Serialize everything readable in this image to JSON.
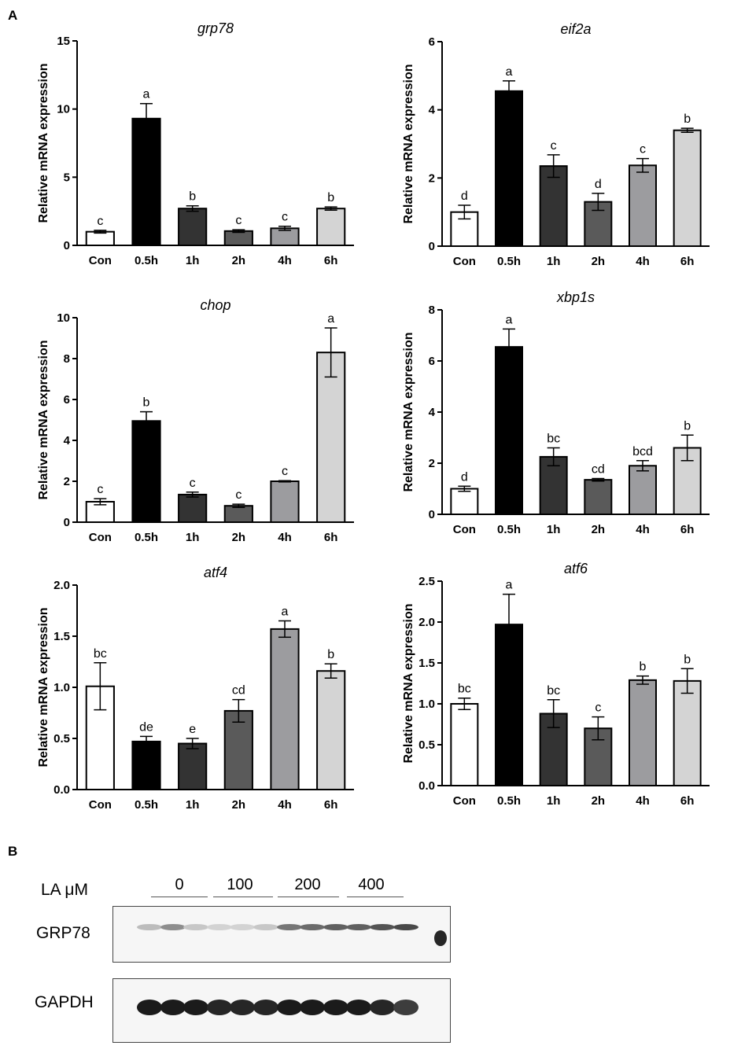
{
  "panel_labels": {
    "a": "A",
    "b": "B"
  },
  "chart_data": [
    {
      "type": "bar",
      "title": "grp78",
      "ylabel": "Relative mRNA expression",
      "categories": [
        "Con",
        "0.5h",
        "1h",
        "2h",
        "4h",
        "6h"
      ],
      "values": [
        1.0,
        9.3,
        2.7,
        1.05,
        1.25,
        2.7
      ],
      "errors": [
        0.1,
        1.1,
        0.2,
        0.1,
        0.15,
        0.12
      ],
      "letters": [
        "c",
        "a",
        "b",
        "c",
        "c",
        "b"
      ],
      "ylim": [
        0,
        15
      ],
      "ticks": [
        0,
        5,
        10,
        15
      ],
      "tick_labels": [
        "0",
        "5",
        "10",
        "15"
      ],
      "bar_colors": [
        "#ffffff",
        "#000000",
        "#333333",
        "#5a5a5a",
        "#9c9c9f",
        "#d4d4d4"
      ]
    },
    {
      "type": "bar",
      "title": "eif2a",
      "ylabel": "Relative mRNA expression",
      "categories": [
        "Con",
        "0.5h",
        "1h",
        "2h",
        "4h",
        "6h"
      ],
      "values": [
        1.0,
        4.55,
        2.35,
        1.3,
        2.37,
        3.4
      ],
      "errors": [
        0.2,
        0.3,
        0.33,
        0.25,
        0.2,
        0.06
      ],
      "letters": [
        "d",
        "a",
        "c",
        "d",
        "c",
        "b"
      ],
      "ylim": [
        0,
        6
      ],
      "ticks": [
        0,
        2,
        4,
        6
      ],
      "tick_labels": [
        "0",
        "2",
        "4",
        "6"
      ],
      "bar_colors": [
        "#ffffff",
        "#000000",
        "#333333",
        "#5a5a5a",
        "#9c9c9f",
        "#d4d4d4"
      ]
    },
    {
      "type": "bar",
      "title": "chop",
      "ylabel": "Relative mRNA expression",
      "categories": [
        "Con",
        "0.5h",
        "1h",
        "2h",
        "4h",
        "6h"
      ],
      "values": [
        1.0,
        4.95,
        1.35,
        0.8,
        2.0,
        8.3
      ],
      "errors": [
        0.15,
        0.45,
        0.12,
        0.08,
        0.03,
        1.2
      ],
      "letters": [
        "c",
        "b",
        "c",
        "c",
        "c",
        "a"
      ],
      "ylim": [
        0,
        10
      ],
      "ticks": [
        0,
        2,
        4,
        6,
        8,
        10
      ],
      "tick_labels": [
        "0",
        "2",
        "4",
        "6",
        "8",
        "10"
      ],
      "bar_colors": [
        "#ffffff",
        "#000000",
        "#333333",
        "#5a5a5a",
        "#9c9c9f",
        "#d4d4d4"
      ]
    },
    {
      "type": "bar",
      "title": "xbp1s",
      "ylabel": "Relative mRNA expression",
      "categories": [
        "Con",
        "0.5h",
        "1h",
        "2h",
        "4h",
        "6h"
      ],
      "values": [
        1.0,
        6.55,
        2.25,
        1.35,
        1.9,
        2.6
      ],
      "errors": [
        0.1,
        0.7,
        0.35,
        0.05,
        0.2,
        0.5
      ],
      "letters": [
        "d",
        "a",
        "bc",
        "cd",
        "bcd",
        "b"
      ],
      "ylim": [
        0,
        8
      ],
      "ticks": [
        0,
        2,
        4,
        6,
        8
      ],
      "tick_labels": [
        "0",
        "2",
        "4",
        "6",
        "8"
      ],
      "bar_colors": [
        "#ffffff",
        "#000000",
        "#333333",
        "#5a5a5a",
        "#9c9c9f",
        "#d4d4d4"
      ]
    },
    {
      "type": "bar",
      "title": "atf4",
      "ylabel": "Relative mRNA expression",
      "categories": [
        "Con",
        "0.5h",
        "1h",
        "2h",
        "4h",
        "6h"
      ],
      "values": [
        1.01,
        0.47,
        0.45,
        0.77,
        1.57,
        1.16
      ],
      "errors": [
        0.23,
        0.05,
        0.05,
        0.11,
        0.08,
        0.07
      ],
      "letters": [
        "bc",
        "de",
        "e",
        "cd",
        "a",
        "b"
      ],
      "ylim": [
        0,
        2.0
      ],
      "ticks": [
        0,
        0.5,
        1.0,
        1.5,
        2.0
      ],
      "tick_labels": [
        "0.0",
        "0.5",
        "1.0",
        "1.5",
        "2.0"
      ],
      "bar_colors": [
        "#ffffff",
        "#000000",
        "#333333",
        "#5a5a5a",
        "#9c9c9f",
        "#d4d4d4"
      ]
    },
    {
      "type": "bar",
      "title": "atf6",
      "ylabel": "Relative mRNA expression",
      "categories": [
        "Con",
        "0.5h",
        "1h",
        "2h",
        "4h",
        "6h"
      ],
      "values": [
        1.0,
        1.97,
        0.88,
        0.7,
        1.29,
        1.28
      ],
      "errors": [
        0.07,
        0.37,
        0.17,
        0.14,
        0.05,
        0.15
      ],
      "letters": [
        "bc",
        "a",
        "bc",
        "c",
        "b",
        "b"
      ],
      "ylim": [
        0,
        2.5
      ],
      "ticks": [
        0,
        0.5,
        1.0,
        1.5,
        2.0,
        2.5
      ],
      "tick_labels": [
        "0.0",
        "0.5",
        "1.0",
        "1.5",
        "2.0",
        "2.5"
      ],
      "bar_colors": [
        "#ffffff",
        "#000000",
        "#333333",
        "#5a5a5a",
        "#9c9c9f",
        "#d4d4d4"
      ]
    }
  ],
  "blot": {
    "treatment_label": "LA μM",
    "concentrations": [
      "0",
      "100",
      "200",
      "400"
    ],
    "rows": [
      {
        "label": "GRP78",
        "intensities": [
          0.25,
          0.45,
          0.2,
          0.15,
          0.15,
          0.2,
          0.55,
          0.6,
          0.65,
          0.65,
          0.7,
          0.75
        ],
        "marker": 0.9
      },
      {
        "label": "GAPDH",
        "intensities": [
          0.95,
          0.95,
          0.95,
          0.9,
          0.9,
          0.9,
          0.95,
          0.95,
          0.95,
          0.95,
          0.9,
          0.8
        ],
        "marker": 0.0
      }
    ]
  }
}
